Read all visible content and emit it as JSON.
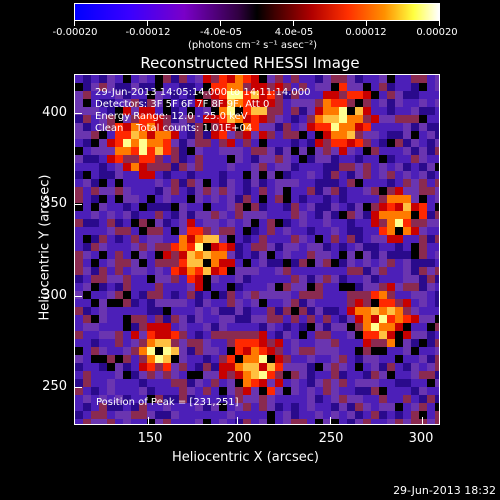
{
  "colorbar": {
    "ticks": [
      "-0.00020",
      "-0.00012",
      "-4.0e-05",
      "4.0e-05",
      "0.00012",
      "0.00020"
    ],
    "units": "(photons cm⁻² s⁻¹ asec⁻²)"
  },
  "title": "Reconstructed RHESSI Image",
  "info": {
    "time": "29-Jun-2013 14:05:14.000 to 14:11:14.000",
    "detectors": "Detectors: 3F 5F 6F 7F 8F 9F, Att 0",
    "energy": "Energy Range: 12.0 - 25.0 keV",
    "clean": "Clean    Total counts: 1.01E+04",
    "peak": "Position of Peak = [231,251]"
  },
  "axes": {
    "xlabel": "Heliocentric X (arcsec)",
    "ylabel": "Heliocentric Y (arcsec)",
    "xticks": [
      "150",
      "200",
      "250",
      "300"
    ],
    "yticks": [
      "400",
      "350",
      "300",
      "250"
    ]
  },
  "timestamp": "29-Jun-2013 18:32"
}
